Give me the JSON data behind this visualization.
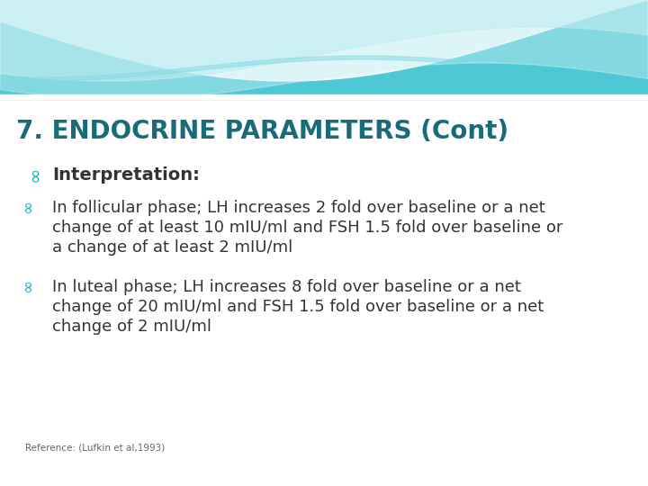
{
  "title": "7. ENDOCRINE PARAMETERS (Cont)",
  "title_color": "#1a6b7a",
  "title_fontsize": 20,
  "background_color": "#ffffff",
  "bullet_color": "#1aabb8",
  "body_color": "#333333",
  "body_fontsize": 13,
  "interp_fontsize": 14,
  "interpretation_label": "Interpretation:",
  "bullet1_lines": [
    "In follicular phase; LH increases 2 fold over baseline or a net",
    "change of at least 10 mIU/ml and FSH 1.5 fold over baseline or",
    "a change of at least 2 mIU/ml"
  ],
  "bullet2_lines": [
    "In luteal phase; LH increases 8 fold over baseline or a net",
    "change of 20 mIU/ml and FSH 1.5 fold over baseline or a net",
    "change of 2 mIU/ml"
  ],
  "reference": "Reference: (Lufkin et al,1993)",
  "reference_fontsize": 7.5,
  "reference_color": "#666666",
  "wave_teal": "#4dc8d4",
  "wave_light": "#b0e8ee",
  "wave_lighter": "#d8f4f7"
}
